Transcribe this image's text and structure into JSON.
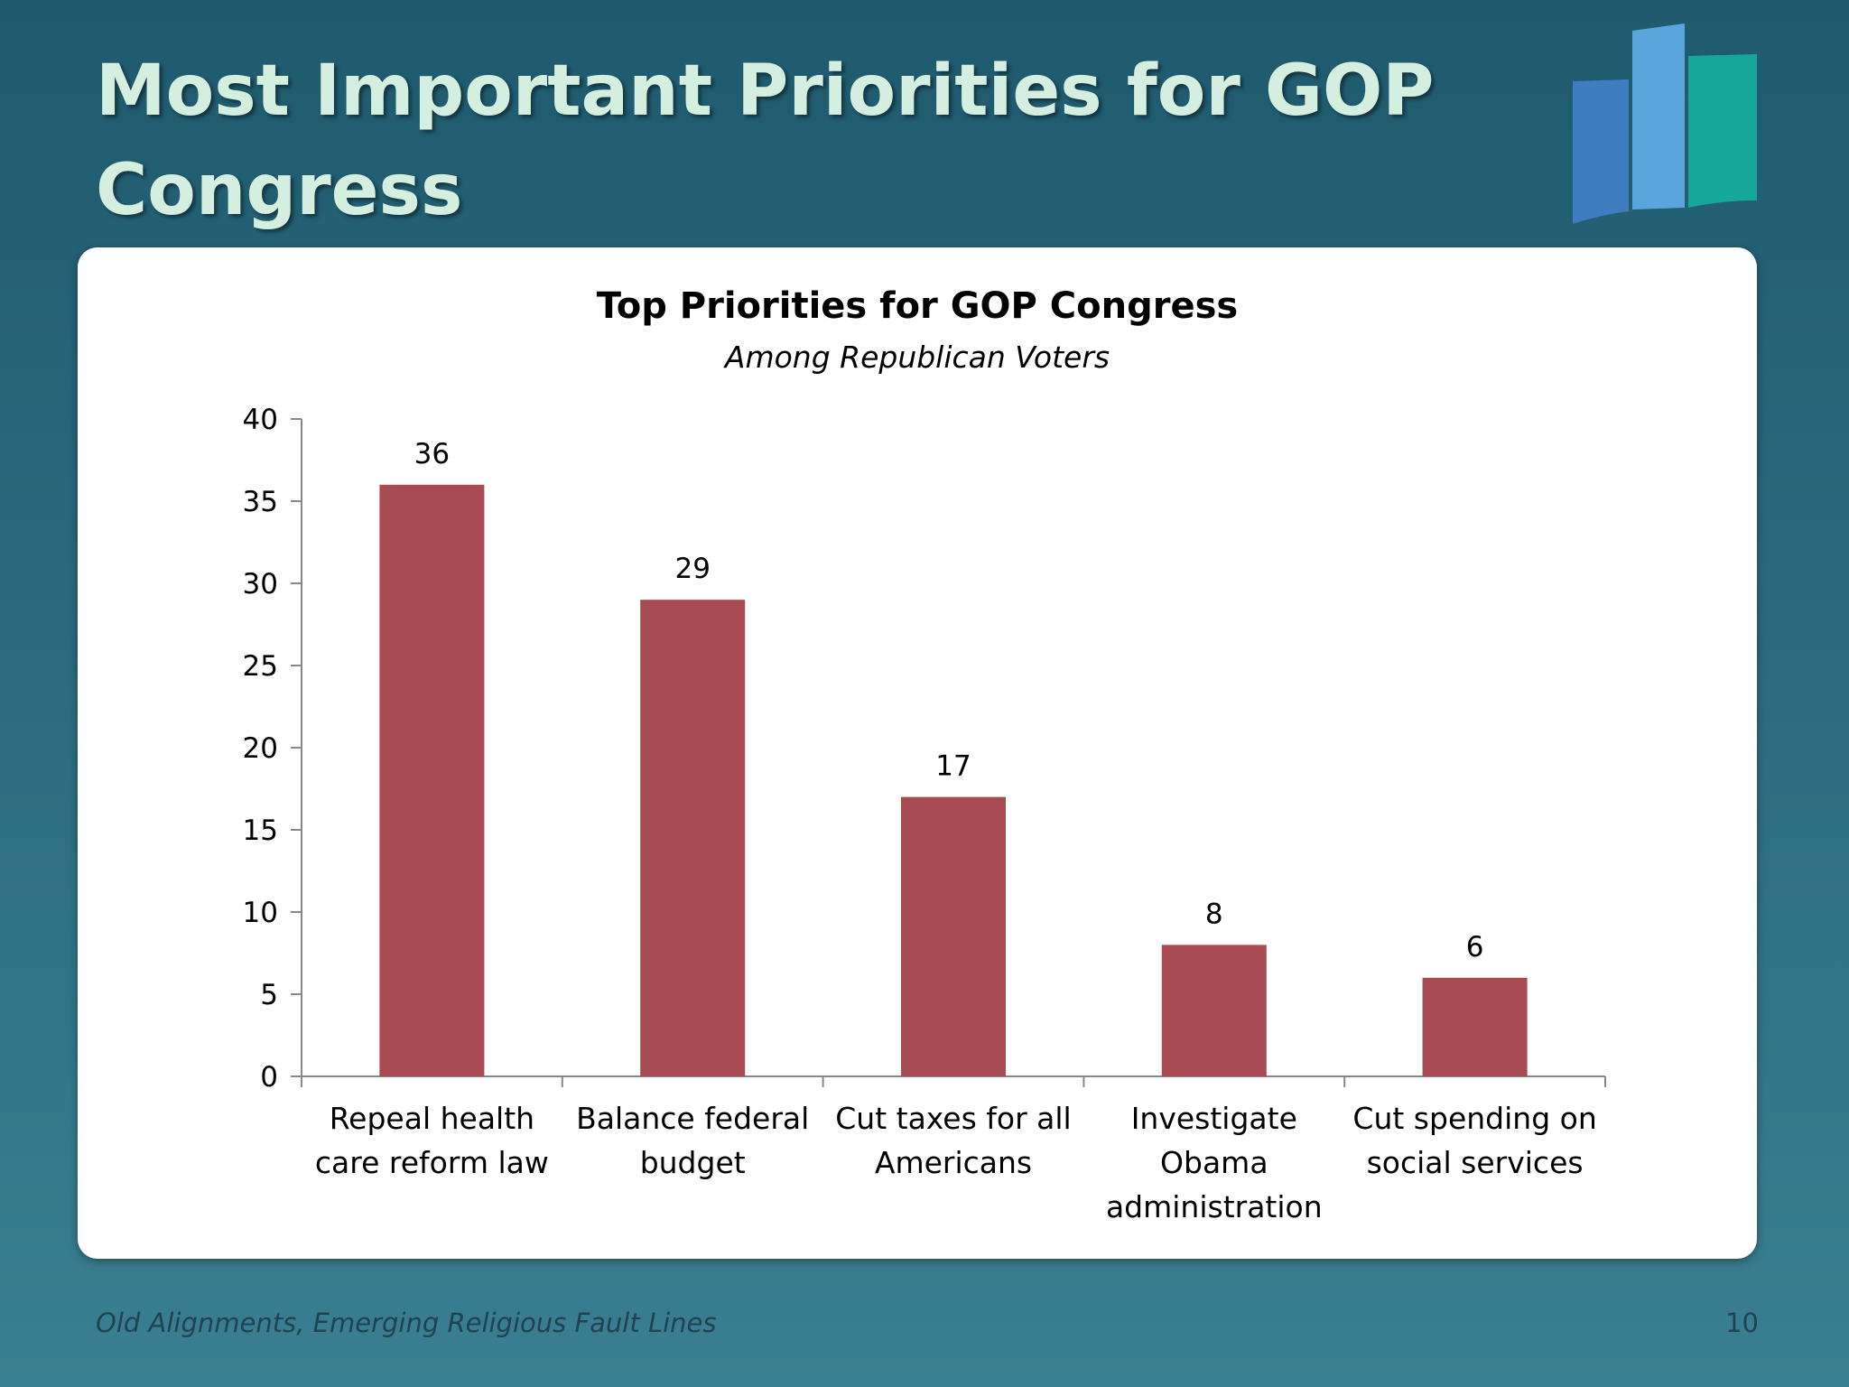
{
  "slide": {
    "title": "Most Important Priorities for GOP Congress",
    "footer": "Old Alignments, Emerging Religious Fault Lines",
    "page_number": "10"
  },
  "logo": {
    "icon": "bar-chart-logo-icon",
    "colors": [
      "#3f7cc0",
      "#5aa6dc",
      "#16a79b"
    ]
  },
  "chart_data": {
    "type": "bar",
    "title": "Top Priorities for GOP Congress",
    "subtitle": "Among Republican Voters",
    "categories": [
      [
        "Repeal health",
        "care reform law"
      ],
      [
        "Balance federal",
        "budget"
      ],
      [
        "Cut taxes for all",
        "Americans"
      ],
      [
        "Investigate",
        "Obama",
        "administration"
      ],
      [
        "Cut spending on",
        "social services"
      ]
    ],
    "values": [
      36,
      29,
      17,
      8,
      6
    ],
    "ylim": [
      0,
      40
    ],
    "yticks": [
      0,
      5,
      10,
      15,
      20,
      25,
      30,
      35,
      40
    ],
    "bar_color": "#a84a52",
    "grid": false,
    "legend": "none"
  }
}
